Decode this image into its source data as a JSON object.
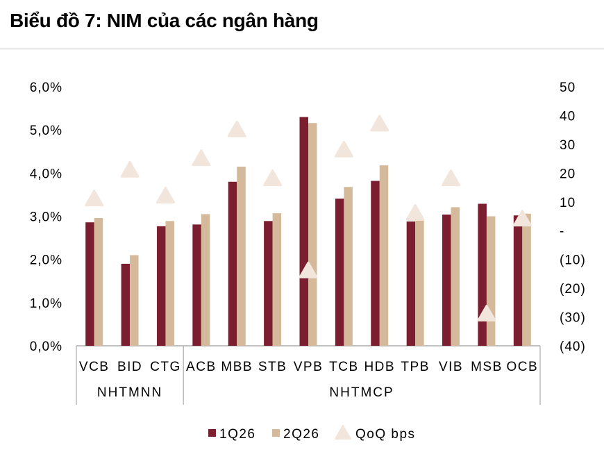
{
  "title": "Biểu đồ 7: NIM của các ngân hàng",
  "chart_data": {
    "type": "bar",
    "title": "Biểu đồ 7: NIM của các ngân hàng",
    "categories": [
      "VCB",
      "BID",
      "CTG",
      "ACB",
      "MBB",
      "STB",
      "VPB",
      "TCB",
      "HDB",
      "TPB",
      "VIB",
      "MSB",
      "OCB"
    ],
    "groups": [
      {
        "label": "NHTMNN",
        "start": 0,
        "end": 2
      },
      {
        "label": "NHTMCP",
        "start": 3,
        "end": 12
      }
    ],
    "series": [
      {
        "name": "1Q26",
        "axis": "left",
        "type": "bar",
        "color": "#7B1E2F",
        "values": [
          2.86,
          1.9,
          2.77,
          2.81,
          3.8,
          2.89,
          5.3,
          3.41,
          3.82,
          2.88,
          3.04,
          3.29,
          3.02
        ]
      },
      {
        "name": "2Q26",
        "axis": "left",
        "type": "bar",
        "color": "#D4BA9A",
        "values": [
          2.96,
          2.1,
          2.89,
          3.05,
          4.15,
          3.07,
          5.16,
          3.68,
          4.18,
          2.94,
          3.21,
          3.0,
          3.06
        ]
      },
      {
        "name": "QoQ bps",
        "axis": "right",
        "type": "scatter",
        "marker": "triangle",
        "color": "#F2E6DC",
        "values": [
          11,
          21,
          12,
          25,
          35,
          18,
          -14,
          28,
          37,
          6,
          18,
          -29,
          4
        ]
      }
    ],
    "y_left": {
      "min": 0,
      "max": 6,
      "step": 1,
      "tick_labels": [
        "0,0%",
        "1,0%",
        "2,0%",
        "3,0%",
        "4,0%",
        "5,0%",
        "6,0%"
      ]
    },
    "y_right": {
      "min": -40,
      "max": 50,
      "step": 10,
      "tick_labels": [
        "(40)",
        "(30)",
        "(20)",
        "(10)",
        "-",
        "10",
        "20",
        "30",
        "40",
        "50"
      ]
    },
    "legend": {
      "placement": "bottom",
      "items": [
        "1Q26",
        "2Q26",
        "QoQ bps"
      ]
    },
    "grid": false
  }
}
